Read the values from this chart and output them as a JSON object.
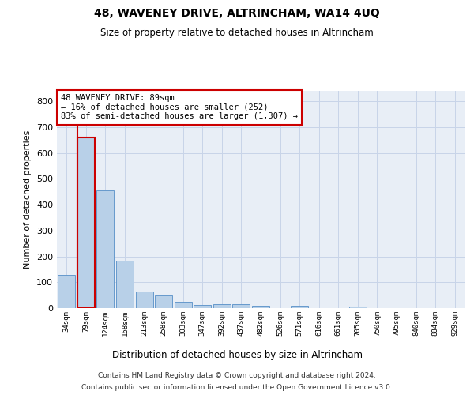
{
  "title": "48, WAVENEY DRIVE, ALTRINCHAM, WA14 4UQ",
  "subtitle": "Size of property relative to detached houses in Altrincham",
  "xlabel": "Distribution of detached houses by size in Altrincham",
  "ylabel": "Number of detached properties",
  "categories": [
    "34sqm",
    "79sqm",
    "124sqm",
    "168sqm",
    "213sqm",
    "258sqm",
    "303sqm",
    "347sqm",
    "392sqm",
    "437sqm",
    "482sqm",
    "526sqm",
    "571sqm",
    "616sqm",
    "661sqm",
    "705sqm",
    "750sqm",
    "795sqm",
    "840sqm",
    "884sqm",
    "929sqm"
  ],
  "values": [
    128,
    660,
    455,
    182,
    65,
    48,
    25,
    12,
    14,
    15,
    8,
    0,
    8,
    0,
    0,
    7,
    0,
    0,
    0,
    0,
    0
  ],
  "bar_color": "#b8d0e8",
  "bar_edge_color": "#6699cc",
  "highlight_index": 1,
  "highlight_color": "#cc0000",
  "annotation_text": "48 WAVENEY DRIVE: 89sqm\n← 16% of detached houses are smaller (252)\n83% of semi-detached houses are larger (1,307) →",
  "annotation_box_color": "#ffffff",
  "annotation_box_edge_color": "#cc0000",
  "ylim": [
    0,
    840
  ],
  "yticks": [
    0,
    100,
    200,
    300,
    400,
    500,
    600,
    700,
    800
  ],
  "grid_color": "#c8d4e8",
  "background_color": "#e8eef6",
  "footer_line1": "Contains HM Land Registry data © Crown copyright and database right 2024.",
  "footer_line2": "Contains public sector information licensed under the Open Government Licence v3.0."
}
